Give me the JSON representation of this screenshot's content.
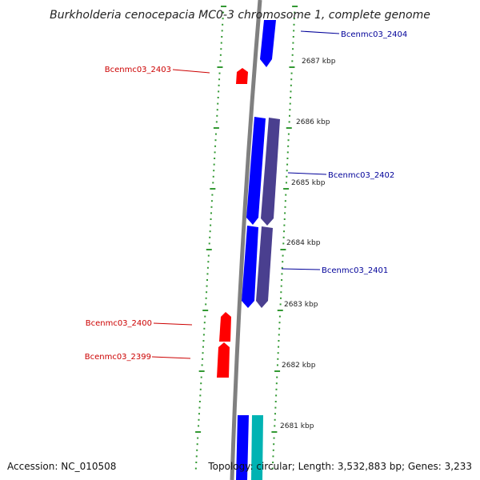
{
  "title": "Burkholderia cenocepacia MC0-3 chromosome 1, complete genome",
  "footer": {
    "accession": "Accession: NC_010508",
    "topology": "Topology: circular; Length: 3,532,883 bp; Genes: 3,233"
  },
  "colors": {
    "reverse_label": "#cc0000",
    "forward_label": "#000099",
    "tick": "#339933",
    "backbone": "#808080",
    "reverse_gene": "#ff0000",
    "forward_gene": "#0000ff",
    "forward_gene_alt": "#4a3f8f",
    "forward_gene_cyan": "#00b3b3"
  },
  "kbp_labels": [
    "2687 kbp",
    "2686 kbp",
    "2685 kbp",
    "2684 kbp",
    "2683 kbp",
    "2682 kbp",
    "2681 kbp"
  ],
  "genes": [
    {
      "label": "Bcenmc03_2404",
      "strand": "forward",
      "color": "#0000ff"
    },
    {
      "label": "Bcenmc03_2403",
      "strand": "reverse",
      "color": "#ff0000"
    },
    {
      "label": "Bcenmc03_2402",
      "strand": "forward",
      "color": "#4a3f8f"
    },
    {
      "label": "Bcenmc03_2401",
      "strand": "forward",
      "color": "#4a3f8f"
    },
    {
      "label": "Bcenmc03_2400",
      "strand": "reverse",
      "color": "#ff0000"
    },
    {
      "label": "Bcenmc03_2399",
      "strand": "reverse",
      "color": "#ff0000"
    }
  ]
}
